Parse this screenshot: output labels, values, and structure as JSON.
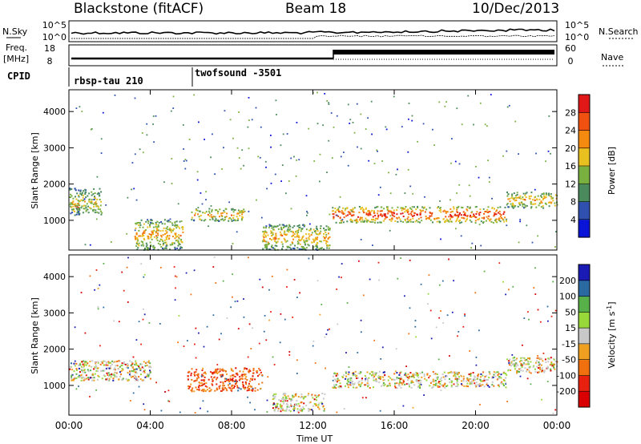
{
  "header": {
    "radar": "Blackstone (fitACF)",
    "beam": "Beam 18",
    "date": "10/Dec/2013"
  },
  "left_labels": {
    "nsky": "N.Sky",
    "freq_line1": "Freq.",
    "freq_line2": "[MHz]",
    "cpid": "CPID"
  },
  "right_labels": {
    "nsearch": "N.Search",
    "nave": "Nave"
  },
  "noise_panel": {
    "left_ticks": [
      "10^5",
      "10^0"
    ],
    "right_ticks": [
      "10^5",
      "10^0"
    ]
  },
  "freq_panel": {
    "left_ticks": [
      "18",
      "8"
    ],
    "right_ticks": [
      "60",
      "0"
    ]
  },
  "cpid_panel": {
    "segments": [
      {
        "start_hour": 0.0,
        "label": "rbsp-tau 210"
      },
      {
        "start_hour": 6.0,
        "label": "twofsound -3501"
      }
    ]
  },
  "time_axis": {
    "label": "Time UT",
    "ticks": [
      "00:00",
      "04:00",
      "08:00",
      "12:00",
      "16:00",
      "20:00",
      "00:00"
    ]
  },
  "range_axis": {
    "label": "Slant Range [km]",
    "ticks": [
      "1000",
      "2000",
      "3000",
      "4000"
    ]
  },
  "power_colorbar": {
    "label": "Power [dB]",
    "ticks": [
      "4",
      "8",
      "12",
      "16",
      "20",
      "24",
      "28"
    ],
    "colors": [
      "#0a14d6",
      "#3050b0",
      "#4a8a5c",
      "#7ab040",
      "#e8c020",
      "#f48a10",
      "#f05010",
      "#e01818"
    ]
  },
  "velocity_colorbar": {
    "label": "Velocity [m s^-1]",
    "ticks": [
      "200",
      "100",
      "50",
      "15",
      "-15",
      "-50",
      "-100",
      "-200"
    ],
    "colors": [
      "#1a1ab4",
      "#2a6aa0",
      "#58b048",
      "#98d838",
      "#c8c8c8",
      "#f0a020",
      "#f07010",
      "#e82010",
      "#d80000"
    ]
  },
  "chart_data": [
    {
      "type": "heatmap",
      "title": "Power",
      "xlabel": "Time UT",
      "ylabel": "Slant Range [km]",
      "xlim": [
        0,
        24
      ],
      "ylim": [
        180,
        4600
      ],
      "colorbar": "Power [dB]",
      "features": [
        {
          "t0": 0.0,
          "t1": 0.6,
          "r0": 1250,
          "r1": 1500,
          "level": 28
        },
        {
          "t0": 0.0,
          "t1": 1.6,
          "r0": 1150,
          "r1": 1900,
          "level": 16
        },
        {
          "t0": 3.2,
          "t1": 5.6,
          "r0": 200,
          "r1": 1050,
          "level": 20
        },
        {
          "t0": 6.0,
          "t1": 8.6,
          "r0": 1000,
          "r1": 1350,
          "level": 20
        },
        {
          "t0": 9.5,
          "t1": 12.8,
          "r0": 200,
          "r1": 900,
          "level": 20
        },
        {
          "t0": 12.9,
          "t1": 21.5,
          "r0": 950,
          "r1": 1400,
          "level": 28
        },
        {
          "t0": 21.5,
          "t1": 24.0,
          "r0": 1350,
          "r1": 1800,
          "level": 20
        }
      ]
    },
    {
      "type": "heatmap",
      "title": "Velocity",
      "xlabel": "Time UT",
      "ylabel": "Slant Range [km]",
      "xlim": [
        0,
        24
      ],
      "ylim": [
        180,
        4600
      ],
      "colorbar": "Velocity [m s^-1]",
      "features": [
        {
          "t0": 0.0,
          "t1": 4.0,
          "r0": 1150,
          "r1": 1700,
          "velocity": 0
        },
        {
          "t0": 5.8,
          "t1": 9.5,
          "r0": 850,
          "r1": 1500,
          "velocity": -60
        },
        {
          "t0": 10.0,
          "t1": 12.6,
          "r0": 300,
          "r1": 800,
          "velocity": 0
        },
        {
          "t0": 12.9,
          "t1": 21.5,
          "r0": 950,
          "r1": 1400,
          "velocity": 0
        },
        {
          "t0": 21.5,
          "t1": 24.0,
          "r0": 1350,
          "r1": 1800,
          "velocity": 0
        }
      ]
    }
  ]
}
